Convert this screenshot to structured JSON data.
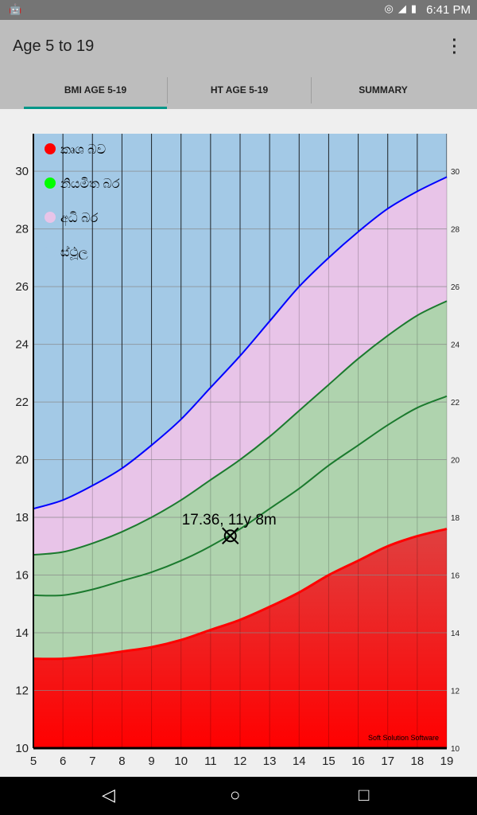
{
  "status_bar": {
    "time": "6:41 PM",
    "icons": [
      "android-icon",
      "hotspot-icon",
      "signal-3g-icon",
      "battery-charging-icon"
    ]
  },
  "app_bar": {
    "title": "Age 5 to 19",
    "menu_icon": "more-vert-icon"
  },
  "tabs": [
    {
      "label": "BMI AGE 5-19",
      "selected": true
    },
    {
      "label": "HT AGE 5-19",
      "selected": false
    },
    {
      "label": "SUMMARY",
      "selected": false
    }
  ],
  "accent_color": "#009688",
  "chart_data": {
    "type": "area",
    "xlim": [
      5,
      19
    ],
    "ylim": [
      10,
      31.3
    ],
    "x_ticks": [
      5,
      6,
      7,
      8,
      9,
      10,
      11,
      12,
      13,
      14,
      15,
      16,
      17,
      18,
      19
    ],
    "y_ticks_left": [
      10,
      12,
      14,
      16,
      18,
      20,
      22,
      24,
      26,
      28,
      30
    ],
    "y_ticks_right": [
      10,
      12,
      14,
      16,
      18,
      20,
      22,
      24,
      26,
      28,
      30
    ],
    "grid": true,
    "legend_placement": "top-left",
    "legend": [
      {
        "label": "කෘශ බව",
        "color": "#ff0000"
      },
      {
        "label": "නියමිත බර",
        "color": "#00ff00"
      },
      {
        "label": "අධි බර",
        "color": "#e8c4e8"
      },
      {
        "label": "ස්ථූල",
        "color": "#a3c9e6"
      }
    ],
    "x": [
      5,
      6,
      7,
      8,
      9,
      10,
      11,
      12,
      13,
      14,
      15,
      16,
      17,
      18,
      19
    ],
    "series": [
      {
        "role": "underweight-upper",
        "color": "#ff0000",
        "values": [
          13.1,
          13.1,
          13.2,
          13.35,
          13.5,
          13.75,
          14.1,
          14.45,
          14.9,
          15.4,
          16.0,
          16.5,
          17.0,
          17.35,
          17.6
        ]
      },
      {
        "role": "median",
        "color": "#1b7a2e",
        "values": [
          15.3,
          15.3,
          15.5,
          15.8,
          16.1,
          16.5,
          17.0,
          17.6,
          18.3,
          19.0,
          19.8,
          20.5,
          21.2,
          21.8,
          22.2
        ]
      },
      {
        "role": "normal-upper",
        "color": "#1b7a2e",
        "values": [
          16.7,
          16.8,
          17.1,
          17.5,
          18.0,
          18.6,
          19.3,
          20.0,
          20.8,
          21.7,
          22.6,
          23.5,
          24.3,
          25.0,
          25.5
        ]
      },
      {
        "role": "overweight-upper",
        "color": "#0000ff",
        "values": [
          18.3,
          18.6,
          19.1,
          19.7,
          20.5,
          21.4,
          22.5,
          23.6,
          24.8,
          26.0,
          27.0,
          27.9,
          28.7,
          29.3,
          29.8
        ]
      }
    ],
    "point": {
      "x": 11.67,
      "y": 17.36,
      "label": "17.36, 11y 8m",
      "marker": "crosshair-x-icon"
    },
    "watermark": "Soft Solution Software"
  },
  "nav_bar": {
    "icons": [
      "back-icon",
      "home-icon",
      "recents-icon"
    ]
  }
}
